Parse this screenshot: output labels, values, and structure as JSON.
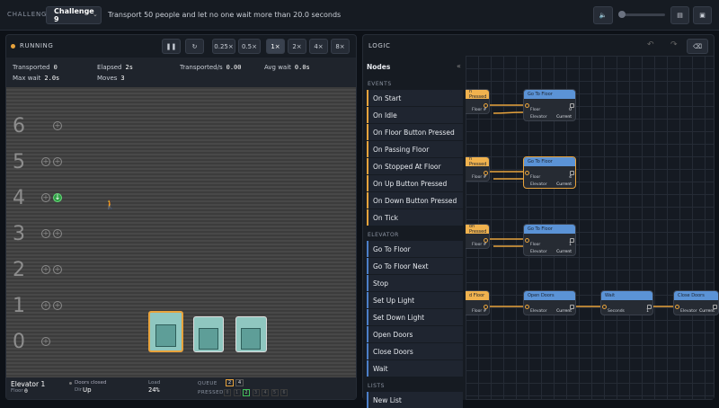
{
  "top_bar": {
    "challenge_label": "CHALLENGE",
    "challenge": "Challenge 9",
    "objective": "Transport 50 people and let no one wait more than 20.0 seconds"
  },
  "simulation": {
    "status": "RUNNING",
    "speeds": [
      "0.25×",
      "0.5×",
      "1×",
      "2×",
      "4×",
      "8×"
    ],
    "stats": [
      {
        "label": "Transported",
        "value": "0"
      },
      {
        "label": "Elapsed",
        "value": "2s"
      },
      {
        "label": "Transported/s",
        "value": "0.00"
      },
      {
        "label": "Avg wait",
        "value": "0.0s"
      },
      {
        "label": "Max wait",
        "value": "2.0s"
      },
      {
        "label": "Moves",
        "value": "3"
      }
    ],
    "floors": [
      "6",
      "5",
      "4",
      "3",
      "2",
      "1",
      "0"
    ],
    "elevator": {
      "name": "Elevator 1",
      "floor_label": "Floor",
      "floor": "0",
      "doors": "Doors closed",
      "dir_label": "Dir",
      "dir": "Up",
      "load_label": "Load",
      "load": "24%",
      "queue_label": "QUEUE",
      "queue": [
        "2",
        "4"
      ],
      "pressed_label": "PRESSED",
      "pressed": [
        "0",
        "1",
        "2",
        "3",
        "4",
        "5",
        "6"
      ]
    }
  },
  "logic": {
    "title": "LOGIC",
    "palette_title": "Nodes",
    "sections": [
      {
        "title": "EVENTS",
        "items": [
          "On Start",
          "On Idle",
          "On Floor Button Pressed",
          "On Passing Floor",
          "On Stopped At Floor",
          "On Up Button Pressed",
          "On Down Button Pressed",
          "On Tick"
        ]
      },
      {
        "title": "ELEVATOR",
        "items": [
          "Go To Floor",
          "Go To Floor Next",
          "Stop",
          "Set Up Light",
          "Set Down Light",
          "Open Doors",
          "Close Doors",
          "Wait"
        ]
      },
      {
        "title": "LISTS",
        "items": [
          "New List"
        ]
      }
    ],
    "graph_nodes": [
      {
        "title": "n Pressed",
        "fields": [
          {
            "label": "Floor #"
          }
        ]
      },
      {
        "title": "Go To Floor",
        "fields": [
          {
            "label": "Floor",
            "value": "0"
          },
          {
            "label": "Elevator",
            "value": "Current"
          }
        ]
      },
      {
        "title": "n Pressed",
        "fields": [
          {
            "label": "Floor #"
          }
        ]
      },
      {
        "title": "Go To Floor",
        "fields": [
          {
            "label": "Floor",
            "value": "4"
          },
          {
            "label": "Elevator",
            "value": "Current"
          }
        ]
      },
      {
        "title": "on Pressed",
        "fields": [
          {
            "label": "Floor #"
          }
        ]
      },
      {
        "title": "Go To Floor",
        "fields": [
          {
            "label": "Floor",
            "value": "1"
          },
          {
            "label": "Elevator",
            "value": "Current"
          }
        ]
      },
      {
        "title": "d Floor",
        "fields": [
          {
            "label": "Floor #"
          }
        ]
      },
      {
        "title": "Open Doors",
        "fields": [
          {
            "label": "Elevator",
            "value": "Current"
          }
        ]
      },
      {
        "title": "Wait",
        "fields": [
          {
            "label": "Seconds",
            "value": "1"
          }
        ]
      },
      {
        "title": "Close Doors",
        "fields": [
          {
            "label": "Elevator",
            "value": "Current"
          }
        ]
      }
    ]
  }
}
